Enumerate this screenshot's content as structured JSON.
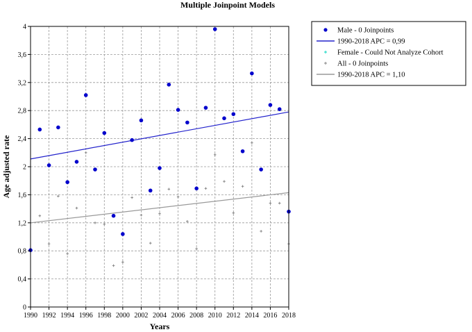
{
  "chart_data": {
    "type": "scatter",
    "title": "Multiple Joinpoint Models",
    "xlabel": "Years",
    "ylabel": "Age adjusted rate",
    "xlim": [
      1990,
      2018
    ],
    "ylim": [
      0,
      4
    ],
    "x_ticks": [
      "1990",
      "1992",
      "1994",
      "1996",
      "1998",
      "2000",
      "2002",
      "2004",
      "2006",
      "2008",
      "2010",
      "2012",
      "2014",
      "2016",
      "2018"
    ],
    "y_ticks": [
      "0",
      "0,4",
      "0,8",
      "1,2",
      "1,6",
      "2",
      "2,4",
      "2,8",
      "3,2",
      "3,6",
      "4"
    ],
    "grid": true,
    "legend_position": "right",
    "series": [
      {
        "name": "Male - 0 Joinpoints",
        "kind": "points",
        "color": "#0000cc",
        "x": [
          1990,
          1991,
          1992,
          1993,
          1994,
          1995,
          1996,
          1997,
          1998,
          1999,
          2000,
          2001,
          2002,
          2003,
          2004,
          2005,
          2006,
          2007,
          2008,
          2009,
          2010,
          2011,
          2012,
          2013,
          2014,
          2015,
          2016,
          2017,
          2018
        ],
        "y": [
          0.81,
          2.53,
          2.02,
          2.56,
          1.78,
          2.07,
          3.02,
          1.96,
          2.48,
          1.3,
          1.04,
          2.38,
          2.66,
          1.66,
          1.98,
          3.17,
          2.81,
          2.63,
          1.69,
          2.84,
          3.96,
          2.69,
          2.75,
          2.22,
          3.33,
          1.96,
          2.88,
          2.82,
          1.36
        ]
      },
      {
        "name": "1990-2018 APC  = 0,99",
        "kind": "line",
        "color": "#2222cc",
        "x": [
          1990,
          2018
        ],
        "y": [
          2.11,
          2.78
        ]
      },
      {
        "name": "Female - Could Not Analyze Cohort",
        "kind": "points",
        "color": "#33ddcc",
        "x": [],
        "y": []
      },
      {
        "name": "All - 0 Joinpoints",
        "kind": "points",
        "color": "#888888",
        "x": [
          1991,
          1992,
          1993,
          1994,
          1995,
          1996,
          1997,
          1998,
          1999,
          2000,
          2001,
          2002,
          2003,
          2004,
          2005,
          2006,
          2007,
          2008,
          2009,
          2010,
          2011,
          2012,
          2013,
          2014,
          2015,
          2016,
          2017,
          2018
        ],
        "y": [
          1.3,
          0.9,
          1.58,
          0.76,
          1.41,
          2.2,
          1.2,
          1.18,
          0.59,
          0.64,
          1.56,
          1.31,
          0.91,
          1.33,
          1.68,
          1.57,
          1.22,
          0.83,
          1.69,
          2.17,
          1.79,
          1.34,
          1.72,
          2.34,
          1.08,
          1.48,
          1.48,
          0.9
        ]
      },
      {
        "name": "1990-2018 APC  = 1,10",
        "kind": "line",
        "color": "#999999",
        "x": [
          1990,
          2018
        ],
        "y": [
          1.2,
          1.63
        ]
      }
    ]
  }
}
